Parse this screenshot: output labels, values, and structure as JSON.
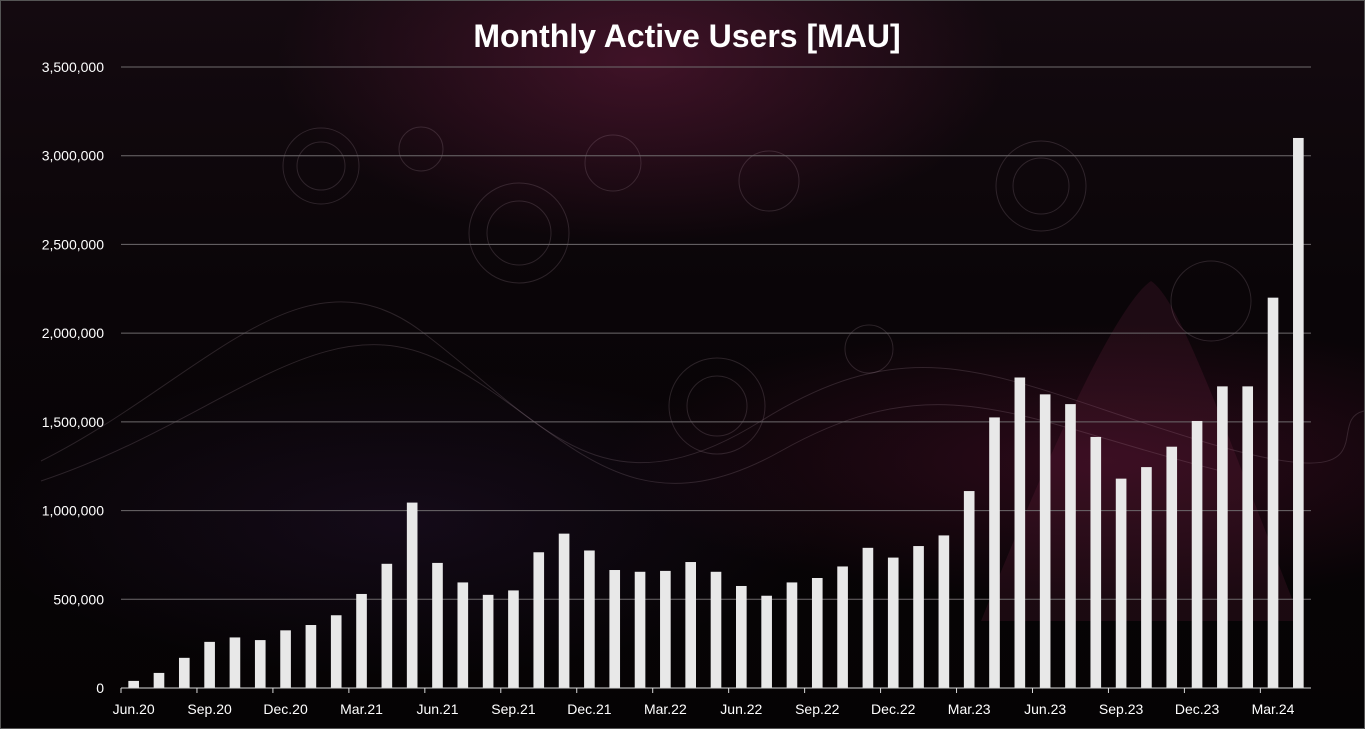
{
  "chart_data": {
    "type": "bar",
    "title": "Monthly Active Users [MAU]",
    "xlabel": "",
    "ylabel": "",
    "ylim": [
      0,
      3500000
    ],
    "y_ticks": [
      0,
      500000,
      1000000,
      1500000,
      2000000,
      2500000,
      3000000,
      3500000
    ],
    "y_tick_labels": [
      "0",
      "500,000",
      "1,000,000",
      "1,500,000",
      "2,000,000",
      "2,500,000",
      "3,000,000",
      "3,500,000"
    ],
    "grid": true,
    "legend": "none",
    "bar_color": "#e8e8e8",
    "categories": [
      "Jun.20",
      "Jul.20",
      "Aug.20",
      "Sep.20",
      "Oct.20",
      "Nov.20",
      "Dec.20",
      "Jan.21",
      "Feb.21",
      "Mar.21",
      "Apr.21",
      "May.21",
      "Jun.21",
      "Jul.21",
      "Aug.21",
      "Sep.21",
      "Oct.21",
      "Nov.21",
      "Dec.21",
      "Jan.22",
      "Feb.22",
      "Mar.22",
      "Apr.22",
      "May.22",
      "Jun.22",
      "Jul.22",
      "Aug.22",
      "Sep.22",
      "Oct.22",
      "Nov.22",
      "Dec.22",
      "Jan.23",
      "Feb.23",
      "Mar.23",
      "Apr.23",
      "May.23",
      "Jun.23",
      "Jul.23",
      "Aug.23",
      "Sep.23",
      "Oct.23",
      "Nov.23",
      "Dec.23",
      "Jan.24",
      "Feb.24",
      "Mar.24",
      "Apr.24"
    ],
    "x_tick_labels": [
      {
        "index": 0,
        "label": "Jun.20"
      },
      {
        "index": 3,
        "label": "Sep.20"
      },
      {
        "index": 6,
        "label": "Dec.20"
      },
      {
        "index": 9,
        "label": "Mar.21"
      },
      {
        "index": 12,
        "label": "Jun.21"
      },
      {
        "index": 15,
        "label": "Sep.21"
      },
      {
        "index": 18,
        "label": "Dec.21"
      },
      {
        "index": 21,
        "label": "Mar.22"
      },
      {
        "index": 24,
        "label": "Jun.22"
      },
      {
        "index": 27,
        "label": "Sep.22"
      },
      {
        "index": 30,
        "label": "Dec.22"
      },
      {
        "index": 33,
        "label": "Mar.23"
      },
      {
        "index": 36,
        "label": "Jun.23"
      },
      {
        "index": 39,
        "label": "Sep.23"
      },
      {
        "index": 42,
        "label": "Dec.23"
      },
      {
        "index": 45,
        "label": "Mar.24"
      }
    ],
    "values": [
      40000,
      85000,
      170000,
      260000,
      285000,
      270000,
      325000,
      355000,
      410000,
      530000,
      700000,
      1045000,
      705000,
      595000,
      525000,
      550000,
      765000,
      870000,
      775000,
      665000,
      655000,
      660000,
      710000,
      655000,
      575000,
      520000,
      595000,
      620000,
      685000,
      790000,
      735000,
      800000,
      860000,
      1110000,
      1525000,
      1750000,
      1655000,
      1600000,
      1415000,
      1180000,
      1245000,
      1360000,
      1505000,
      1700000,
      1700000,
      2200000,
      3100000
    ]
  }
}
